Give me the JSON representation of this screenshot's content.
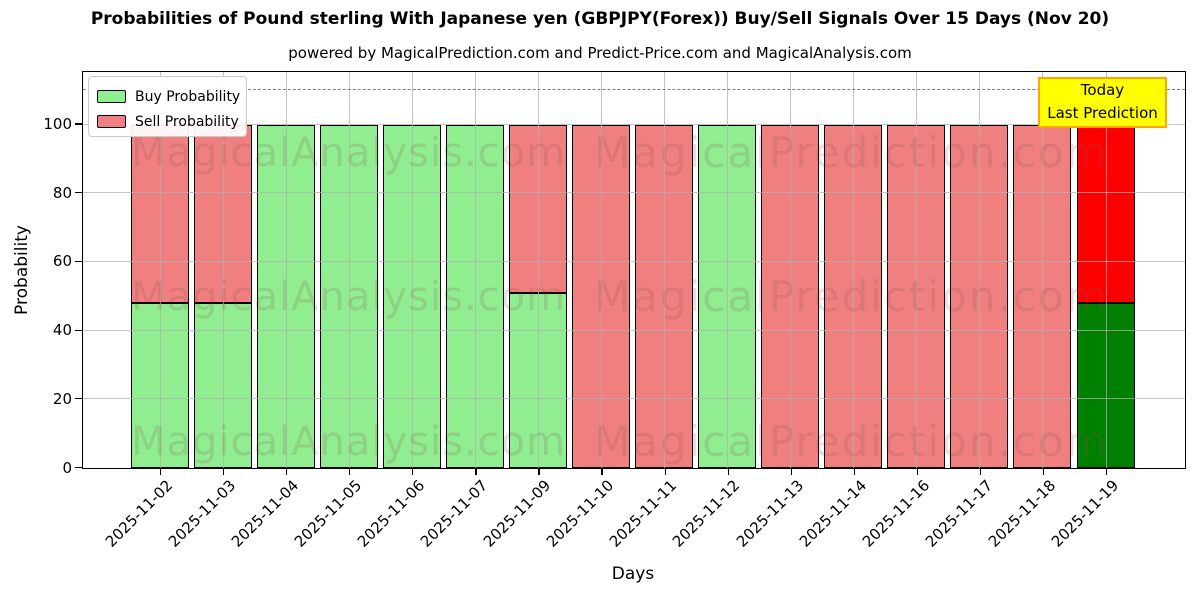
{
  "title": "Probabilities of Pound sterling With Japanese yen (GBPJPY(Forex)) Buy/Sell Signals Over 15 Days (Nov 20)",
  "subtitle": "powered by MagicalPrediction.com and Predict-Price.com and MagicalAnalysis.com",
  "watermark": {
    "left": "MagicalAnalysis.com",
    "right": "MagicalPrediction.com"
  },
  "annotation": {
    "line1": "Today",
    "line2": "Last Prediction"
  },
  "legend": {
    "items": [
      {
        "label": "Buy Probability",
        "color": "#90EE90"
      },
      {
        "label": "Sell Probability",
        "color": "#F08080"
      }
    ]
  },
  "colors": {
    "buy": "#90EE90",
    "sell": "#F08080",
    "today_buy": "#008000",
    "today_sell": "#FF0000",
    "bar_edge": "#000000",
    "grid": "#b0b0b0",
    "dashed_line": "#7f7f7f",
    "annotation_bg": "#FFFF00",
    "annotation_border": "#FFA500",
    "watermark": "rgba(140,80,80,0.18)"
  },
  "chart_data": {
    "type": "bar",
    "stacked": true,
    "title": "Probabilities of Pound sterling With Japanese yen (GBPJPY(Forex)) Buy/Sell Signals Over 15 Days (Nov 20)",
    "xlabel": "Days",
    "ylabel": "Probability",
    "ylim": [
      0,
      115
    ],
    "yticks": [
      0,
      20,
      40,
      60,
      80,
      100
    ],
    "dashed_line_y": 110,
    "grid": true,
    "legend_position": "upper left",
    "categories": [
      "2025-11-02",
      "2025-11-03",
      "2025-11-04",
      "2025-11-05",
      "2025-11-06",
      "2025-11-07",
      "2025-11-09",
      "2025-11-10",
      "2025-11-11",
      "2025-11-12",
      "2025-11-13",
      "2025-11-14",
      "2025-11-16",
      "2025-11-17",
      "2025-11-18",
      "2025-11-19"
    ],
    "series": [
      {
        "name": "Buy Probability",
        "values": [
          48,
          48,
          100,
          100,
          100,
          100,
          51,
          0,
          0,
          100,
          0,
          0,
          0,
          0,
          0,
          48
        ]
      },
      {
        "name": "Sell Probability",
        "values": [
          52,
          52,
          0,
          0,
          0,
          0,
          49,
          100,
          100,
          0,
          100,
          100,
          100,
          100,
          100,
          52
        ]
      }
    ],
    "today_index": 15
  }
}
